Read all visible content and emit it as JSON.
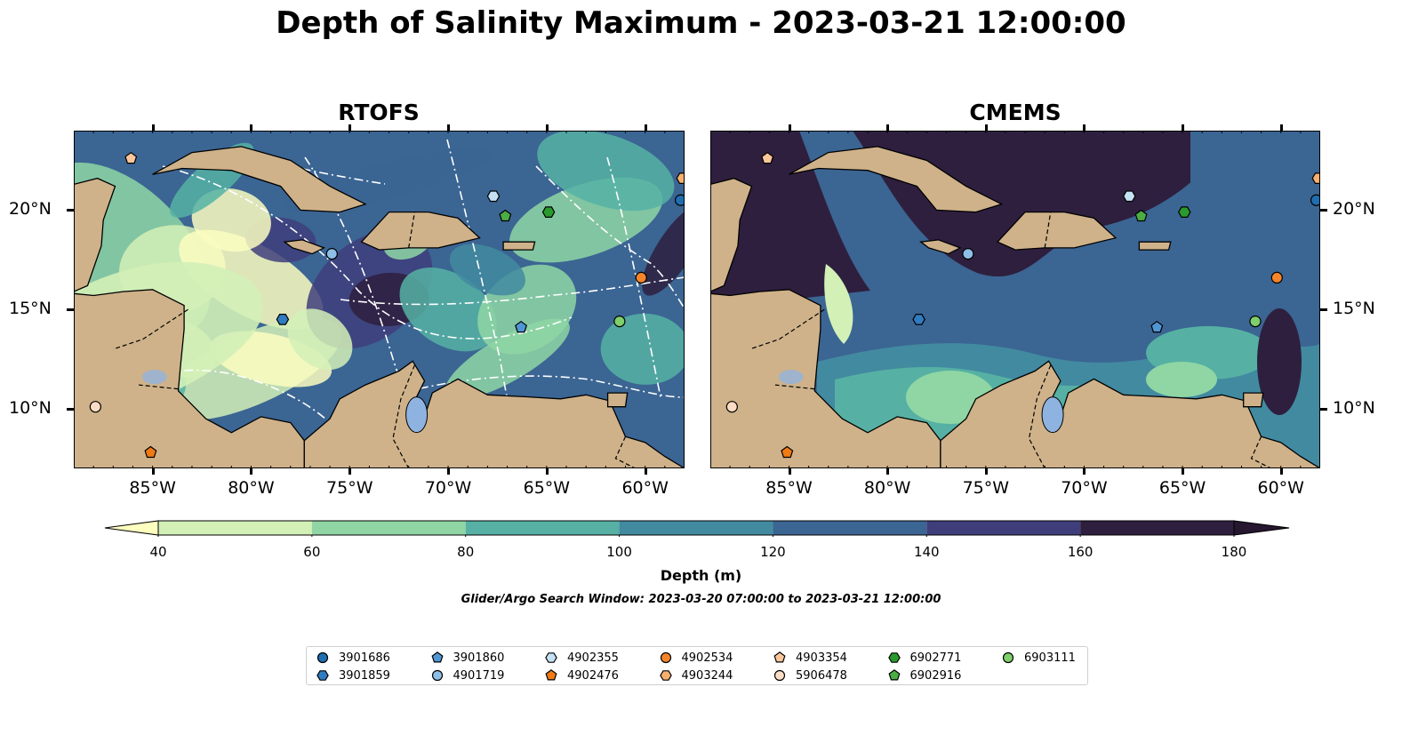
{
  "title": "Depth of Salinity Maximum - 2023-03-21 12:00:00",
  "panels": [
    {
      "title": "RTOFS"
    },
    {
      "title": "CMEMS"
    }
  ],
  "lon_ticks": [
    "85°W",
    "80°W",
    "75°W",
    "70°W",
    "65°W",
    "60°W"
  ],
  "lat_ticks": [
    "20°N",
    "15°N",
    "10°N"
  ],
  "colorbar": {
    "label": "Depth (m)",
    "ticks": [
      "40",
      "60",
      "80",
      "100",
      "120",
      "140",
      "160",
      "180"
    ],
    "colors": [
      "#fcfdbf",
      "#d3f0b7",
      "#8fd6a4",
      "#56b1a4",
      "#428aa0",
      "#3b6593",
      "#3f3e7b",
      "#2e1f3e",
      "#26162e"
    ]
  },
  "search_window": "Glider/Argo Search Window: 2023-03-20 07:00:00 to 2023-03-21 12:00:00",
  "legend": [
    {
      "label": "3901686",
      "marker": "circle",
      "color": "#1f6eb0"
    },
    {
      "label": "3901859",
      "marker": "hexagon",
      "color": "#2f7cc0"
    },
    {
      "label": "3901860",
      "marker": "pentagon",
      "color": "#4f97d4"
    },
    {
      "label": "4901719",
      "marker": "circle",
      "color": "#8ebfe6"
    },
    {
      "label": "4902355",
      "marker": "hexagon",
      "color": "#c5e2f5"
    },
    {
      "label": "4902476",
      "marker": "pentagon",
      "color": "#f07a14"
    },
    {
      "label": "4902534",
      "marker": "circle",
      "color": "#f5852a"
    },
    {
      "label": "4903244",
      "marker": "hexagon",
      "color": "#f8b06f"
    },
    {
      "label": "4903354",
      "marker": "pentagon",
      "color": "#fbc79a"
    },
    {
      "label": "5906478",
      "marker": "circle",
      "color": "#fbdcc4"
    },
    {
      "label": "6902771",
      "marker": "hexagon",
      "color": "#2a9a2e"
    },
    {
      "label": "6902916",
      "marker": "pentagon",
      "color": "#4cad42"
    },
    {
      "label": "6903111",
      "marker": "circle",
      "color": "#7fcf6b"
    }
  ],
  "chart_data": {
    "type": "heatmap",
    "variable": "Depth of Salinity Maximum",
    "units": "m",
    "levels": [
      40,
      60,
      80,
      100,
      120,
      140,
      160,
      180
    ],
    "extend": "both",
    "lon_range": [
      -89,
      -58
    ],
    "lat_range": [
      7,
      24
    ],
    "float_positions": [
      {
        "id": "3901686",
        "lon": -58.2,
        "lat": 20.5
      },
      {
        "id": "3901859",
        "lon": -78.4,
        "lat": 14.5
      },
      {
        "id": "3901860",
        "lon": -66.3,
        "lat": 14.1
      },
      {
        "id": "4901719",
        "lon": -75.9,
        "lat": 17.8
      },
      {
        "id": "4902355",
        "lon": -67.7,
        "lat": 20.7
      },
      {
        "id": "4902476",
        "lon": -85.1,
        "lat": 7.8
      },
      {
        "id": "4902534",
        "lon": -60.2,
        "lat": 16.6
      },
      {
        "id": "4903244",
        "lon": -58.1,
        "lat": 21.6
      },
      {
        "id": "4903354",
        "lon": -86.1,
        "lat": 22.6
      },
      {
        "id": "5906478",
        "lon": -87.9,
        "lat": 10.1
      },
      {
        "id": "6902771",
        "lon": -64.9,
        "lat": 19.9
      },
      {
        "id": "6902916",
        "lon": -67.1,
        "lat": 19.7
      },
      {
        "id": "6903111",
        "lon": -61.3,
        "lat": 14.4
      }
    ]
  }
}
